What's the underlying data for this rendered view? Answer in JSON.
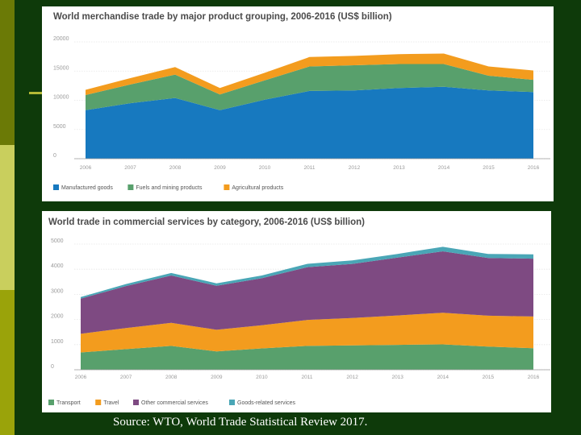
{
  "source_text": "Source: WTO, World Trade Statistical Review 2017.",
  "colors": {
    "background": "#0e3a0a",
    "series": [
      "#1779bf",
      "#58a06c",
      "#f39c1e",
      "#7e4a82",
      "#4aa6b6"
    ]
  },
  "chart_data": [
    {
      "type": "area",
      "stacked": true,
      "title": "World merchandise trade by major product grouping, 2006-2016 (US$ billion)",
      "categories": [
        "2006",
        "2007",
        "2008",
        "2009",
        "2010",
        "2011",
        "2012",
        "2013",
        "2014",
        "2015",
        "2016"
      ],
      "y_ticks": [
        "20000",
        "15000",
        "10000",
        "5000",
        "0"
      ],
      "ylim": [
        0,
        20000
      ],
      "series": [
        {
          "name": "Manufactured goods",
          "color": "#1779bf",
          "values": [
            8300,
            9500,
            10400,
            8300,
            10100,
            11600,
            11700,
            12100,
            12300,
            11700,
            11400
          ]
        },
        {
          "name": "Fuels and mining products",
          "color": "#58a06c",
          "values": [
            2600,
            3200,
            4000,
            2700,
            3300,
            4200,
            4300,
            4100,
            3900,
            2500,
            2100
          ]
        },
        {
          "name": "Agricultural products",
          "color": "#f39c1e",
          "values": [
            900,
            1100,
            1300,
            1100,
            1300,
            1600,
            1600,
            1700,
            1800,
            1600,
            1600
          ]
        }
      ]
    },
    {
      "type": "area",
      "stacked": true,
      "title": "World trade in commercial services by category, 2006-2016 (US$ billion)",
      "categories": [
        "2006",
        "2007",
        "2008",
        "2009",
        "2010",
        "2011",
        "2012",
        "2013",
        "2014",
        "2015",
        "2016"
      ],
      "y_ticks": [
        "5000",
        "4000",
        "3000",
        "2000",
        "1000",
        "0"
      ],
      "ylim": [
        0,
        5000
      ],
      "series": [
        {
          "name": "Transport",
          "color": "#58a06c",
          "values": [
            690,
            820,
            950,
            730,
            850,
            950,
            970,
            990,
            1010,
            920,
            860
          ]
        },
        {
          "name": "Travel",
          "color": "#f39c1e",
          "values": [
            740,
            840,
            920,
            860,
            920,
            1030,
            1090,
            1170,
            1260,
            1230,
            1260
          ]
        },
        {
          "name": "Other commercial services",
          "color": "#7e4a82",
          "values": [
            1400,
            1670,
            1880,
            1750,
            1870,
            2100,
            2150,
            2300,
            2440,
            2300,
            2300
          ]
        },
        {
          "name": "Goods-related services",
          "color": "#4aa6b6",
          "values": [
            60,
            80,
            100,
            100,
            110,
            130,
            140,
            150,
            180,
            160,
            170
          ]
        }
      ]
    }
  ]
}
